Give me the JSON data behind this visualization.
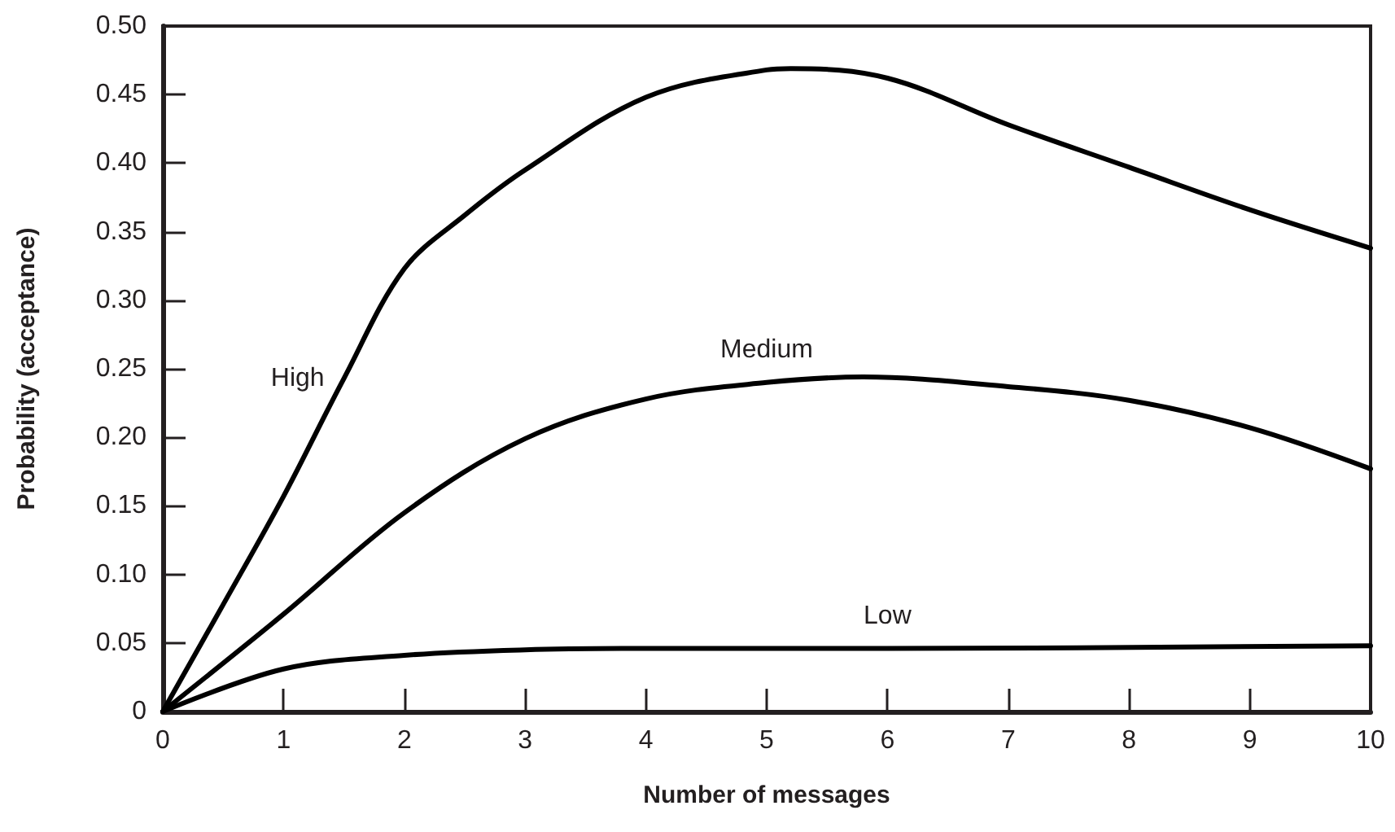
{
  "chart_data": {
    "type": "line",
    "xlabel": "Number of messages",
    "ylabel": "Probability (acceptance)",
    "x": [
      0,
      0.5,
      1,
      1.5,
      2,
      2.5,
      3,
      4,
      5,
      5.2,
      6,
      7,
      8,
      9,
      10
    ],
    "series": [
      {
        "name": "High",
        "color": "#000000",
        "values": [
          0,
          0.078,
          0.157,
          0.243,
          0.323,
          0.362,
          0.395,
          0.448,
          0.468,
          0.469,
          0.462,
          0.428,
          0.397,
          0.366,
          0.338
        ]
      },
      {
        "name": "Medium",
        "color": "#000000",
        "x": [
          0,
          1,
          2,
          3,
          4,
          5,
          5.8,
          7,
          8,
          9,
          10
        ],
        "values": [
          0,
          0.071,
          0.145,
          0.199,
          0.228,
          0.24,
          0.244,
          0.237,
          0.227,
          0.207,
          0.177
        ]
      },
      {
        "name": "Low",
        "color": "#000000",
        "x": [
          0,
          1,
          2,
          3,
          4,
          6,
          10
        ],
        "values": [
          0,
          0.031,
          0.041,
          0.045,
          0.046,
          0.046,
          0.048
        ]
      }
    ],
    "xlim": [
      0,
      10
    ],
    "xticks": [
      0,
      1,
      2,
      3,
      4,
      5,
      6,
      7,
      8,
      9,
      10
    ],
    "ylim": [
      0,
      0.5
    ],
    "yticks": [
      0,
      {
        "value": 0.05,
        "label": "0.05"
      },
      {
        "value": 0.1,
        "label": "0.10"
      },
      {
        "value": 0.15,
        "label": "0.15"
      },
      {
        "value": 0.2,
        "label": "0.20"
      },
      {
        "value": 0.25,
        "label": "0.25"
      },
      {
        "value": 0.3,
        "label": "0.30"
      },
      {
        "value": 0.35,
        "label": "0.35"
      },
      {
        "value": 0.4,
        "label": "0.40"
      },
      {
        "value": 0.45,
        "label": "0.45"
      },
      {
        "value": 0.5,
        "label": "0.50"
      }
    ],
    "grid": false,
    "legend": false,
    "line_style": "solid"
  }
}
